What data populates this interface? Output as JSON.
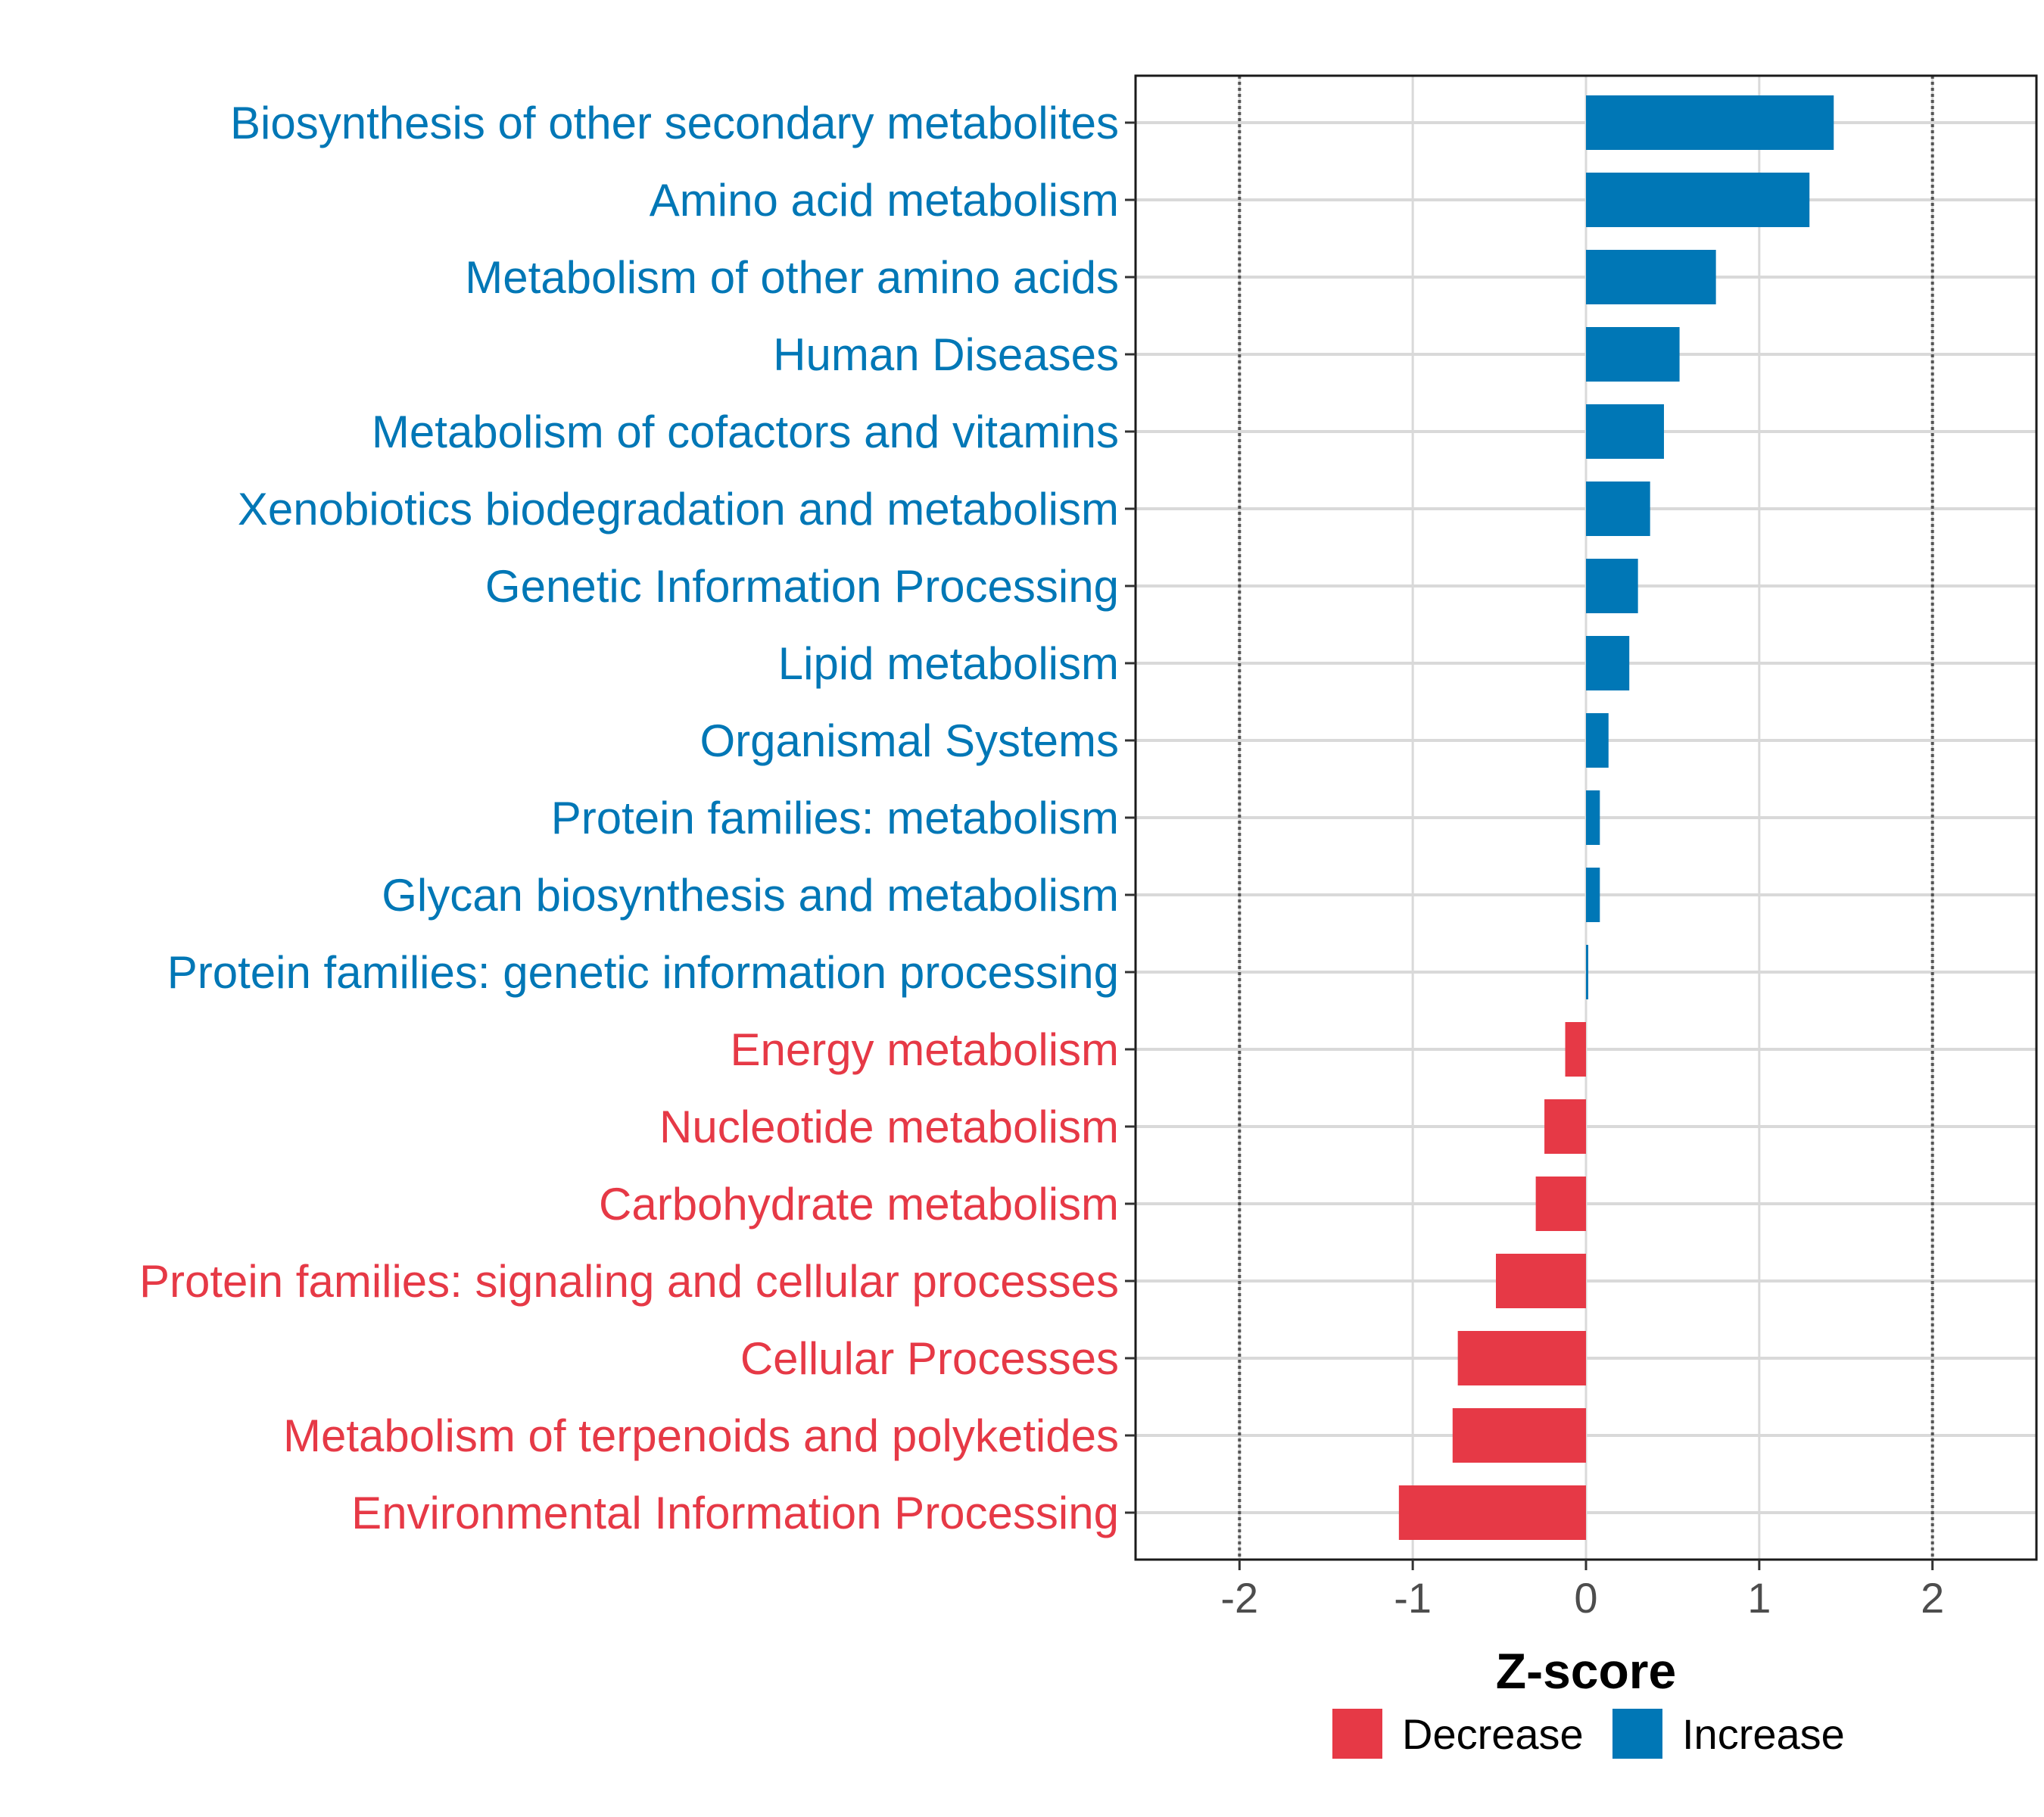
{
  "colors": {
    "decrease": "#E63946",
    "increase": "#0077B6",
    "grid": "#d9d9d9",
    "refline": "#555555"
  },
  "chart_data": {
    "type": "bar",
    "orientation": "horizontal",
    "xlabel": "Z-score",
    "xlim": [
      -2.6,
      2.6
    ],
    "xticks": [
      -2,
      -1,
      0,
      1,
      2
    ],
    "xtick_labels": [
      "-2",
      "-1",
      "0",
      "1",
      "2"
    ],
    "reference_lines": [
      -2,
      2
    ],
    "categories": [
      "Biosynthesis of other secondary metabolites",
      "Amino acid metabolism",
      "Metabolism of other amino acids",
      "Human Diseases",
      "Metabolism of cofactors and vitamins",
      "Xenobiotics biodegradation and metabolism",
      "Genetic Information Processing",
      "Lipid metabolism",
      "Organismal Systems",
      "Protein families: metabolism",
      "Glycan biosynthesis and metabolism",
      "Protein families: genetic information processing",
      "Energy metabolism",
      "Nucleotide metabolism",
      "Carbohydrate metabolism",
      "Protein families: signaling and cellular processes",
      "Cellular Processes",
      "Metabolism of terpenoids and polyketides",
      "Environmental Information Processing"
    ],
    "values": [
      1.43,
      1.29,
      0.75,
      0.54,
      0.45,
      0.37,
      0.3,
      0.25,
      0.13,
      0.08,
      0.08,
      0.01,
      -0.12,
      -0.24,
      -0.29,
      -0.52,
      -0.74,
      -0.77,
      -1.08
    ],
    "legend": {
      "position": "bottom",
      "entries": [
        {
          "label": "Decrease",
          "color": "#E63946"
        },
        {
          "label": "Increase",
          "color": "#0077B6"
        }
      ]
    }
  }
}
